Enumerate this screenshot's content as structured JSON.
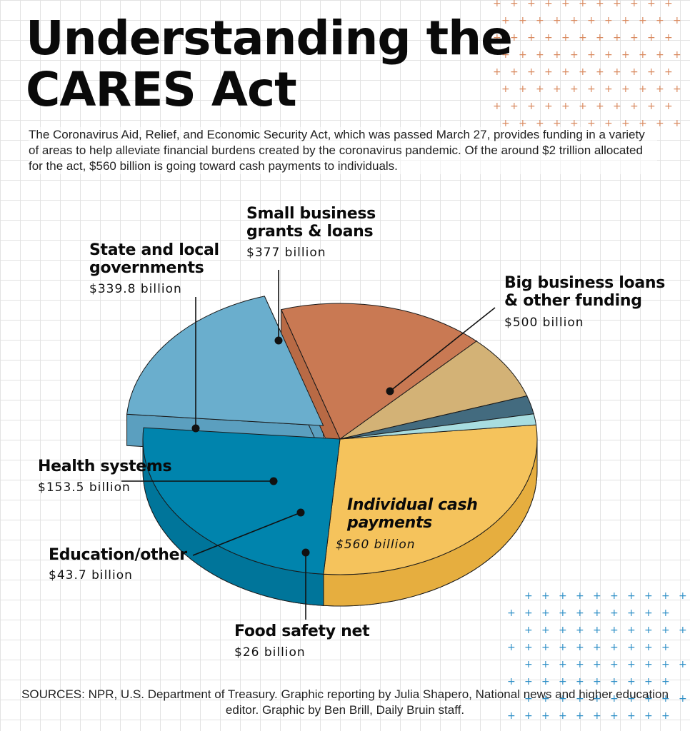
{
  "title": "Understanding the\nCARES Act",
  "intro": "The Coronavirus Aid, Relief, and Economic Security Act, which was passed March 27, provides funding in a variety of areas to help alleviate financial burdens created by the coronavirus pandemic. Of the around $2 trillion allocated for the act, $560 billion is going toward cash payments to individuals.",
  "sources": "SOURCES: NPR, U.S. Department of Treasury. Graphic reporting by Julia Shapero, National news and higher education editor. Graphic by Ben Brill, Daily Bruin staff.",
  "colors": {
    "decor_orange": "#d98a5f",
    "decor_blue": "#2e8fc7"
  },
  "chart_data": {
    "type": "pie",
    "title": "",
    "unit": "billion",
    "slices": [
      {
        "label": "Individual cash\npayments",
        "value": 560,
        "value_label": "$560 billion",
        "color": "#f5c35c",
        "side": "#e6ae3f",
        "italic": true
      },
      {
        "label": "Big business loans\n& other funding",
        "value": 500,
        "value_label": "$500 billion",
        "color": "#0084ad",
        "side": "#00759a",
        "italic": false
      },
      {
        "label": "Small business\ngrants & loans",
        "value": 377,
        "value_label": "$377 billion",
        "color": "#6aaecd",
        "side": "#5b9fbf",
        "italic": false
      },
      {
        "label": "State and local\ngovernments",
        "value": 339.8,
        "value_label": "$339.8 billion",
        "color": "#c97953",
        "side": "#b86a45",
        "italic": false
      },
      {
        "label": "Health systems",
        "value": 153.5,
        "value_label": "$153.5 billion",
        "color": "#d3b276",
        "side": "#c8a66b",
        "italic": false
      },
      {
        "label": "Education/other",
        "value": 43.7,
        "value_label": "$43.7 billion",
        "color": "#436b7f",
        "side": "#3a6073",
        "italic": false
      },
      {
        "label": "Food safety net",
        "value": 26,
        "value_label": "$26 billion",
        "color": "#a8dde0",
        "side": "#95d1d5",
        "italic": false
      }
    ],
    "legend": "none"
  }
}
